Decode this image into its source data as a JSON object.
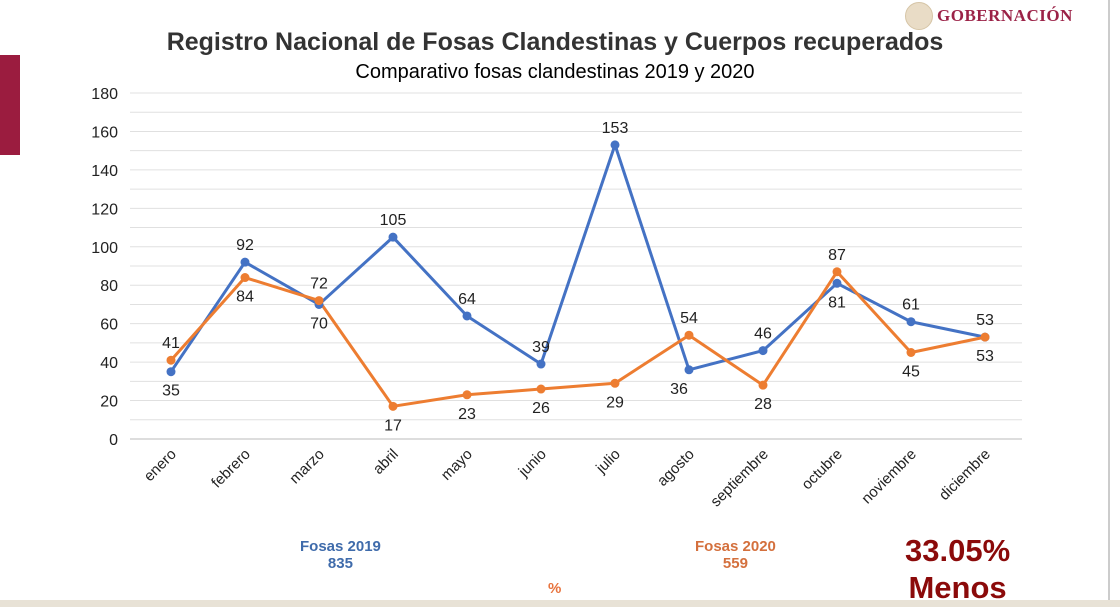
{
  "header": {
    "logo_text": "GOBERNACIÓN"
  },
  "chart_data": {
    "type": "line",
    "title": "Registro Nacional de Fosas Clandestinas y Cuerpos recuperados",
    "subtitle": "Comparativo fosas clandestinas 2019 y 2020",
    "categories": [
      "enero",
      "febrero",
      "marzo",
      "abril",
      "mayo",
      "junio",
      "julio",
      "agosto",
      "septiembre",
      "octubre",
      "noviembre",
      "diciembre"
    ],
    "series": [
      {
        "name": "Fosas 2019",
        "color": "#4472c4",
        "values": [
          35,
          92,
          70,
          105,
          64,
          39,
          153,
          36,
          46,
          81,
          61,
          53
        ]
      },
      {
        "name": "Fosas 2020",
        "color": "#ed7d31",
        "values": [
          41,
          84,
          72,
          17,
          23,
          26,
          29,
          54,
          28,
          87,
          45,
          53
        ]
      }
    ],
    "ylim": [
      0,
      180
    ],
    "yticks": [
      0,
      20,
      40,
      60,
      80,
      100,
      120,
      140,
      160,
      180
    ],
    "grid": true
  },
  "summary": {
    "label_2019": "Fosas 2019",
    "total_2019": "835",
    "label_2020": "Fosas 2020",
    "total_2020": "559",
    "percent_sign": "%",
    "change": "33.05%",
    "change_word": "Menos"
  }
}
